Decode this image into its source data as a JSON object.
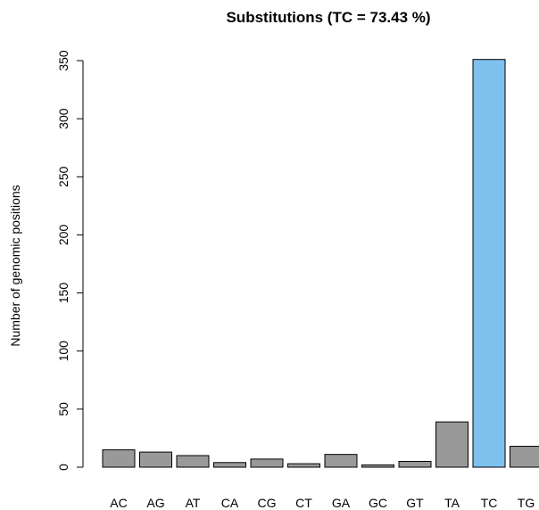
{
  "chart_data": {
    "type": "bar",
    "title": "Substitutions (TC = 73.43 %)",
    "xlabel": "",
    "ylabel": "Number of genomic positions",
    "categories": [
      "AC",
      "AG",
      "AT",
      "CA",
      "CG",
      "CT",
      "GA",
      "GC",
      "GT",
      "TA",
      "TC",
      "TG"
    ],
    "values": [
      15,
      13,
      10,
      4,
      7,
      3,
      11,
      2,
      5,
      39,
      351,
      18
    ],
    "ylim": [
      0,
      350
    ],
    "yticks": [
      "0",
      "50",
      "100",
      "150",
      "200",
      "250",
      "300",
      "350"
    ],
    "grid": false,
    "colors": {
      "default_bar": "#999999",
      "highlight_bar": "#7ec0ee",
      "highlight_category": "TC"
    }
  }
}
